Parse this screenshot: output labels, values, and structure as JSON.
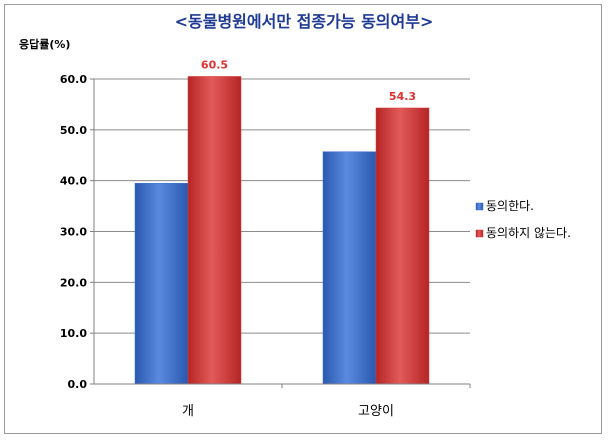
{
  "chart_data": {
    "type": "bar",
    "title": "<동물병원에서만 접종가능 동의여부>",
    "ylabel": "응답률(%)",
    "xlabel": "",
    "categories": [
      "개",
      "고양이"
    ],
    "series": [
      {
        "name": "동의한다.",
        "values": [
          39.5,
          45.7
        ],
        "color": "#3f72cf"
      },
      {
        "name": "동의하지 않는다.",
        "values": [
          60.5,
          54.3
        ],
        "color": "#d63b3b"
      }
    ],
    "data_labels": {
      "series_index": 1,
      "labels": [
        "60.5",
        "54.3"
      ],
      "color": "#e03030"
    },
    "ylim": [
      0,
      60
    ],
    "yticks": [
      "0.0",
      "10.0",
      "20.0",
      "30.0",
      "40.0",
      "50.0",
      "60.0"
    ],
    "grid": true,
    "legend_position": "right"
  }
}
